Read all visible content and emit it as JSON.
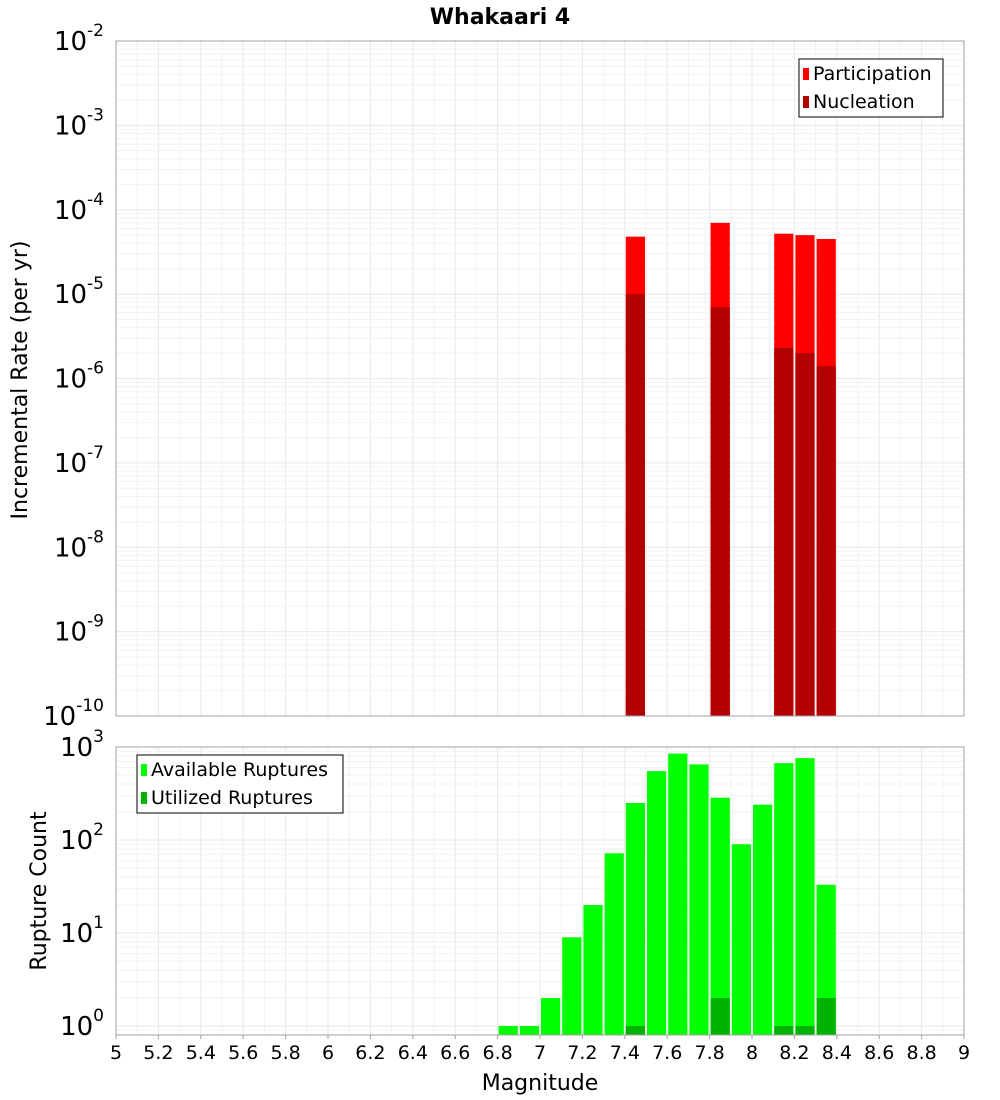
{
  "title": "Whakaari 4",
  "colors": {
    "participation": "#ff0000",
    "nucleation": "#b30000",
    "available": "#00ff00",
    "utilized": "#00b300"
  },
  "chart_data": [
    {
      "type": "bar",
      "scale": "log",
      "ylabel": "Incremental Rate (per yr)",
      "ylim": [
        1e-10,
        0.01
      ],
      "y_ticks": [
        {
          "base": "10",
          "exp": "-10"
        },
        {
          "base": "10",
          "exp": "-9"
        },
        {
          "base": "10",
          "exp": "-8"
        },
        {
          "base": "10",
          "exp": "-7"
        },
        {
          "base": "10",
          "exp": "-6"
        },
        {
          "base": "10",
          "exp": "-5"
        },
        {
          "base": "10",
          "exp": "-4"
        },
        {
          "base": "10",
          "exp": "-3"
        },
        {
          "base": "10",
          "exp": "-2"
        }
      ],
      "legend": [
        "Participation",
        "Nucleation"
      ],
      "legend_position": "top-right",
      "series": [
        {
          "name": "Participation",
          "x": [
            7.45,
            7.85,
            8.15,
            8.25,
            8.35
          ],
          "values": [
            4.8e-05,
            7e-05,
            5.2e-05,
            5e-05,
            4.5e-05
          ]
        },
        {
          "name": "Nucleation",
          "x": [
            7.45,
            7.85,
            8.15,
            8.25,
            8.35
          ],
          "values": [
            1e-05,
            7e-06,
            2.3e-06,
            2e-06,
            1.4e-06
          ]
        }
      ]
    },
    {
      "type": "bar",
      "scale": "log",
      "ylabel": "Rupture Count",
      "ylim": [
        0.8,
        1000
      ],
      "y_ticks": [
        {
          "base": "10",
          "exp": "0"
        },
        {
          "base": "10",
          "exp": "1"
        },
        {
          "base": "10",
          "exp": "2"
        },
        {
          "base": "10",
          "exp": "3"
        }
      ],
      "legend": [
        "Available Ruptures",
        "Utilized Ruptures"
      ],
      "legend_position": "top-left",
      "series": [
        {
          "name": "Available Ruptures",
          "x": [
            6.85,
            6.95,
            7.05,
            7.15,
            7.25,
            7.35,
            7.45,
            7.55,
            7.65,
            7.75,
            7.85,
            7.95,
            8.05,
            8.15,
            8.25,
            8.35
          ],
          "values": [
            1,
            1,
            2,
            9,
            20,
            72,
            250,
            550,
            850,
            650,
            285,
            90,
            240,
            670,
            760,
            33
          ]
        },
        {
          "name": "Utilized Ruptures",
          "x": [
            7.45,
            7.85,
            8.15,
            8.25,
            8.35
          ],
          "values": [
            1,
            2,
            1,
            1,
            2
          ]
        }
      ]
    }
  ],
  "x_axis": {
    "label": "Magnitude",
    "range": [
      5,
      9
    ],
    "bin_width": 0.1,
    "tick_labels": [
      "5",
      "5.2",
      "5.4",
      "5.6",
      "5.8",
      "6",
      "6.2",
      "6.4",
      "6.6",
      "6.8",
      "7",
      "7.2",
      "7.4",
      "7.6",
      "7.8",
      "8",
      "8.2",
      "8.4",
      "8.6",
      "8.8",
      "9"
    ]
  }
}
